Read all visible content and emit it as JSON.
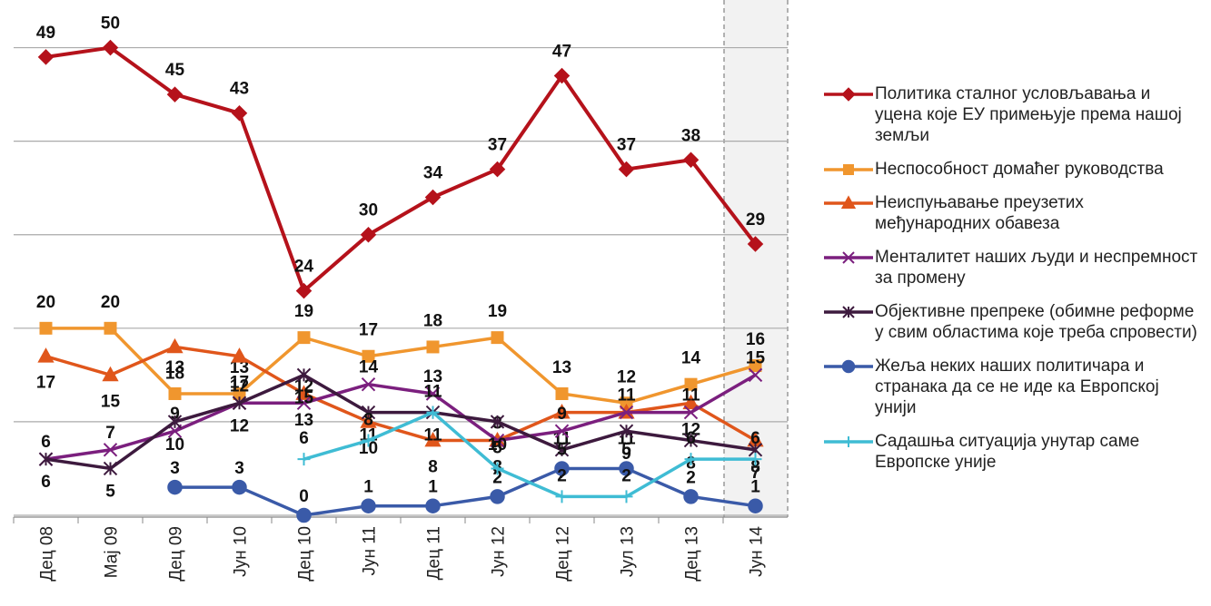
{
  "chart_data": {
    "type": "line",
    "categories": [
      "Дец 08",
      "Мај 09",
      "Дец 09",
      "Јун 10",
      "Дец 10",
      "Јун 11",
      "Дец 11",
      "Јун 12",
      "Дец 12",
      "Јул 13",
      "Дец 13",
      "Јун 14"
    ],
    "ylim": [
      0,
      55
    ],
    "yticks": [
      0,
      10,
      20,
      30,
      40,
      50
    ],
    "grid": true,
    "series": [
      {
        "name": "Политика сталног условљавања и уцена које ЕУ примењује према нашој земљи",
        "color": "#b5121b",
        "marker": "diamond",
        "values": [
          49,
          50,
          45,
          43,
          24,
          30,
          34,
          37,
          47,
          37,
          38,
          29
        ]
      },
      {
        "name": "Неспособност домаћег руководства",
        "color": "#f0962e",
        "marker": "square",
        "values": [
          20,
          20,
          13,
          13,
          19,
          17,
          18,
          19,
          13,
          12,
          14,
          16
        ]
      },
      {
        "name": "Неиспуњавање преузетих међународних обавеза",
        "color": "#e0561b",
        "marker": "triangle",
        "values": [
          17,
          15,
          18,
          17,
          13,
          10,
          8,
          8,
          11,
          11,
          12,
          8
        ]
      },
      {
        "name": "Менталитет наших људи и неспремност за промену",
        "color": "#7b1f7e",
        "marker": "x",
        "values": [
          6,
          7,
          9,
          12,
          12,
          14,
          13,
          8,
          9,
          11,
          11,
          15
        ]
      },
      {
        "name": "Објективне препреке (обимне реформе у свим областима које треба спровести)",
        "color": "#3d1a3e",
        "marker": "star",
        "values": [
          6,
          5,
          10,
          12,
          15,
          11,
          11,
          10,
          7,
          9,
          8,
          7
        ]
      },
      {
        "name": "Жеља неких наших политичара и странака да се не иде ка Европској унији",
        "color": "#3a5aa8",
        "marker": "circle",
        "values": [
          null,
          null,
          3,
          3,
          0,
          1,
          1,
          2,
          5,
          5,
          2,
          1
        ]
      },
      {
        "name": "Садашња ситуација унутар саме Европске уније",
        "color": "#3fbcd4",
        "marker": "plus",
        "values": [
          null,
          null,
          null,
          null,
          6,
          8,
          11,
          5,
          2,
          2,
          6,
          6
        ]
      }
    ]
  }
}
